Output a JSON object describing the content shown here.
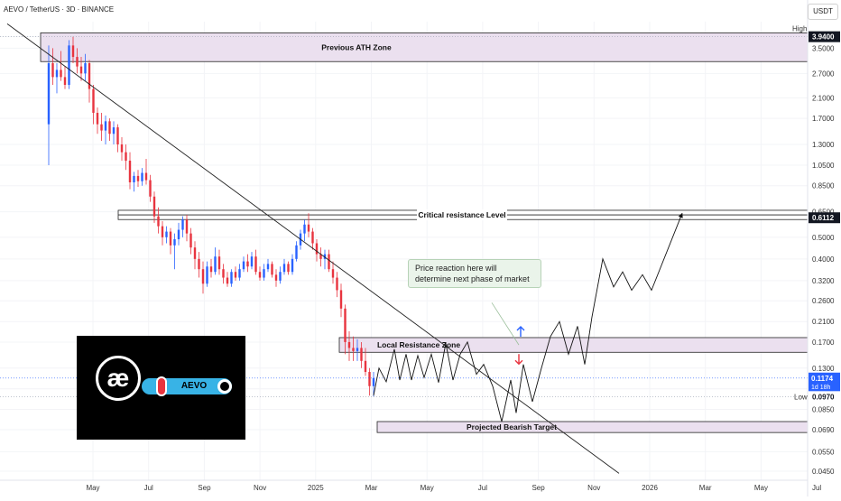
{
  "header": {
    "symbol_line": "AEVO / TetherUS · 3D · BINANCE",
    "currency": "USDT"
  },
  "chart_data": {
    "type": "candlestick",
    "title": "AEVO / TetherUS · 3D · BINANCE",
    "price_scale": "log",
    "y_ticks": [
      "3.9400",
      "3.5000",
      "2.7000",
      "2.1000",
      "1.7000",
      "1.3000",
      "1.0500",
      "0.8500",
      "0.6500",
      "0.5000",
      "0.4000",
      "0.3200",
      "0.2600",
      "0.2100",
      "0.1700",
      "0.1300",
      "0.1050",
      "0.0850",
      "0.0690",
      "0.0550",
      "0.0450"
    ],
    "x_ticks": [
      "May",
      "Jul",
      "Sep",
      "Nov",
      "2025",
      "Mar",
      "May",
      "Jul",
      "Sep",
      "Nov",
      "2026",
      "Mar",
      "May",
      "Jul"
    ],
    "high_label": "High",
    "high_value": "3.9400",
    "low_label": "Low",
    "low_value": "0.0970",
    "current_price": "0.1174",
    "countdown": "1d 18h",
    "critical_level_value": "0.6112",
    "zones": [
      {
        "name": "Previous ATH Zone",
        "from": 3.05,
        "to": 4.1
      },
      {
        "name": "Critical resistance Level",
        "from": 0.6,
        "to": 0.66
      },
      {
        "name": "Local Resistance Zone",
        "from": 0.153,
        "to": 0.178
      },
      {
        "name": "Projected Bearish Target",
        "from": 0.067,
        "to": 0.075
      }
    ],
    "annotation": "Price reaction here will determine next phase of market",
    "candles": [
      {
        "o": 1.6,
        "h": 3.6,
        "l": 1.05,
        "c": 3.0
      },
      {
        "o": 3.0,
        "h": 3.5,
        "l": 2.4,
        "c": 2.6
      },
      {
        "o": 2.6,
        "h": 3.0,
        "l": 2.2,
        "c": 2.8
      },
      {
        "o": 2.8,
        "h": 3.4,
        "l": 2.5,
        "c": 2.6
      },
      {
        "o": 2.6,
        "h": 2.9,
        "l": 2.3,
        "c": 2.4
      },
      {
        "o": 2.4,
        "h": 3.8,
        "l": 2.3,
        "c": 3.6
      },
      {
        "o": 3.6,
        "h": 3.94,
        "l": 3.0,
        "c": 3.2
      },
      {
        "o": 3.2,
        "h": 3.5,
        "l": 2.7,
        "c": 2.9
      },
      {
        "o": 2.9,
        "h": 3.2,
        "l": 2.5,
        "c": 2.7
      },
      {
        "o": 2.7,
        "h": 3.3,
        "l": 2.5,
        "c": 3.0
      },
      {
        "o": 3.0,
        "h": 3.1,
        "l": 2.0,
        "c": 2.3
      },
      {
        "o": 2.3,
        "h": 2.4,
        "l": 1.6,
        "c": 1.8
      },
      {
        "o": 1.8,
        "h": 1.9,
        "l": 1.45,
        "c": 1.6
      },
      {
        "o": 1.6,
        "h": 1.8,
        "l": 1.35,
        "c": 1.5
      },
      {
        "o": 1.5,
        "h": 1.75,
        "l": 1.3,
        "c": 1.65
      },
      {
        "o": 1.65,
        "h": 1.7,
        "l": 1.35,
        "c": 1.45
      },
      {
        "o": 1.45,
        "h": 1.65,
        "l": 1.3,
        "c": 1.55
      },
      {
        "o": 1.55,
        "h": 1.6,
        "l": 1.2,
        "c": 1.3
      },
      {
        "o": 1.3,
        "h": 1.4,
        "l": 1.1,
        "c": 1.2
      },
      {
        "o": 1.2,
        "h": 1.3,
        "l": 1.0,
        "c": 1.1
      },
      {
        "o": 1.1,
        "h": 1.2,
        "l": 0.82,
        "c": 0.88
      },
      {
        "o": 0.88,
        "h": 0.98,
        "l": 0.8,
        "c": 0.94
      },
      {
        "o": 0.94,
        "h": 1.0,
        "l": 0.84,
        "c": 0.89
      },
      {
        "o": 0.89,
        "h": 1.02,
        "l": 0.85,
        "c": 0.97
      },
      {
        "o": 0.97,
        "h": 1.12,
        "l": 0.86,
        "c": 0.9
      },
      {
        "o": 0.9,
        "h": 0.95,
        "l": 0.72,
        "c": 0.76
      },
      {
        "o": 0.76,
        "h": 0.8,
        "l": 0.58,
        "c": 0.62
      },
      {
        "o": 0.62,
        "h": 0.68,
        "l": 0.52,
        "c": 0.56
      },
      {
        "o": 0.56,
        "h": 0.59,
        "l": 0.46,
        "c": 0.5
      },
      {
        "o": 0.5,
        "h": 0.56,
        "l": 0.47,
        "c": 0.53
      },
      {
        "o": 0.53,
        "h": 0.55,
        "l": 0.42,
        "c": 0.46
      },
      {
        "o": 0.46,
        "h": 0.52,
        "l": 0.36,
        "c": 0.49
      },
      {
        "o": 0.49,
        "h": 0.58,
        "l": 0.46,
        "c": 0.54
      },
      {
        "o": 0.54,
        "h": 0.62,
        "l": 0.5,
        "c": 0.6
      },
      {
        "o": 0.6,
        "h": 0.63,
        "l": 0.48,
        "c": 0.52
      },
      {
        "o": 0.52,
        "h": 0.55,
        "l": 0.42,
        "c": 0.45
      },
      {
        "o": 0.45,
        "h": 0.48,
        "l": 0.36,
        "c": 0.4
      },
      {
        "o": 0.4,
        "h": 0.43,
        "l": 0.33,
        "c": 0.36
      },
      {
        "o": 0.36,
        "h": 0.39,
        "l": 0.28,
        "c": 0.31
      },
      {
        "o": 0.31,
        "h": 0.39,
        "l": 0.3,
        "c": 0.37
      },
      {
        "o": 0.37,
        "h": 0.4,
        "l": 0.33,
        "c": 0.35
      },
      {
        "o": 0.35,
        "h": 0.45,
        "l": 0.34,
        "c": 0.41
      },
      {
        "o": 0.41,
        "h": 0.44,
        "l": 0.34,
        "c": 0.36
      },
      {
        "o": 0.36,
        "h": 0.38,
        "l": 0.31,
        "c": 0.33
      },
      {
        "o": 0.33,
        "h": 0.35,
        "l": 0.3,
        "c": 0.31
      },
      {
        "o": 0.31,
        "h": 0.36,
        "l": 0.3,
        "c": 0.35
      },
      {
        "o": 0.35,
        "h": 0.37,
        "l": 0.32,
        "c": 0.33
      },
      {
        "o": 0.33,
        "h": 0.38,
        "l": 0.32,
        "c": 0.36
      },
      {
        "o": 0.36,
        "h": 0.41,
        "l": 0.35,
        "c": 0.39
      },
      {
        "o": 0.39,
        "h": 0.42,
        "l": 0.35,
        "c": 0.37
      },
      {
        "o": 0.37,
        "h": 0.43,
        "l": 0.36,
        "c": 0.41
      },
      {
        "o": 0.41,
        "h": 0.44,
        "l": 0.34,
        "c": 0.35
      },
      {
        "o": 0.35,
        "h": 0.37,
        "l": 0.32,
        "c": 0.33
      },
      {
        "o": 0.33,
        "h": 0.38,
        "l": 0.32,
        "c": 0.36
      },
      {
        "o": 0.36,
        "h": 0.4,
        "l": 0.35,
        "c": 0.38
      },
      {
        "o": 0.38,
        "h": 0.39,
        "l": 0.33,
        "c": 0.34
      },
      {
        "o": 0.34,
        "h": 0.36,
        "l": 0.3,
        "c": 0.32
      },
      {
        "o": 0.32,
        "h": 0.37,
        "l": 0.31,
        "c": 0.35
      },
      {
        "o": 0.35,
        "h": 0.4,
        "l": 0.34,
        "c": 0.38
      },
      {
        "o": 0.38,
        "h": 0.39,
        "l": 0.34,
        "c": 0.35
      },
      {
        "o": 0.35,
        "h": 0.42,
        "l": 0.34,
        "c": 0.4
      },
      {
        "o": 0.4,
        "h": 0.48,
        "l": 0.39,
        "c": 0.46
      },
      {
        "o": 0.46,
        "h": 0.54,
        "l": 0.44,
        "c": 0.52
      },
      {
        "o": 0.52,
        "h": 0.6,
        "l": 0.48,
        "c": 0.57
      },
      {
        "o": 0.57,
        "h": 0.64,
        "l": 0.5,
        "c": 0.53
      },
      {
        "o": 0.53,
        "h": 0.55,
        "l": 0.44,
        "c": 0.47
      },
      {
        "o": 0.47,
        "h": 0.49,
        "l": 0.39,
        "c": 0.42
      },
      {
        "o": 0.42,
        "h": 0.45,
        "l": 0.37,
        "c": 0.4
      },
      {
        "o": 0.4,
        "h": 0.44,
        "l": 0.36,
        "c": 0.42
      },
      {
        "o": 0.42,
        "h": 0.44,
        "l": 0.35,
        "c": 0.36
      },
      {
        "o": 0.36,
        "h": 0.39,
        "l": 0.31,
        "c": 0.33
      },
      {
        "o": 0.33,
        "h": 0.35,
        "l": 0.27,
        "c": 0.29
      },
      {
        "o": 0.29,
        "h": 0.31,
        "l": 0.22,
        "c": 0.24
      },
      {
        "o": 0.24,
        "h": 0.25,
        "l": 0.15,
        "c": 0.17
      },
      {
        "o": 0.17,
        "h": 0.19,
        "l": 0.14,
        "c": 0.16
      },
      {
        "o": 0.16,
        "h": 0.18,
        "l": 0.14,
        "c": 0.155
      },
      {
        "o": 0.155,
        "h": 0.175,
        "l": 0.14,
        "c": 0.16
      },
      {
        "o": 0.16,
        "h": 0.17,
        "l": 0.13,
        "c": 0.14
      },
      {
        "o": 0.14,
        "h": 0.16,
        "l": 0.12,
        "c": 0.125
      },
      {
        "o": 0.125,
        "h": 0.13,
        "l": 0.098,
        "c": 0.108
      },
      {
        "o": 0.108,
        "h": 0.125,
        "l": 0.097,
        "c": 0.1174
      }
    ]
  }
}
